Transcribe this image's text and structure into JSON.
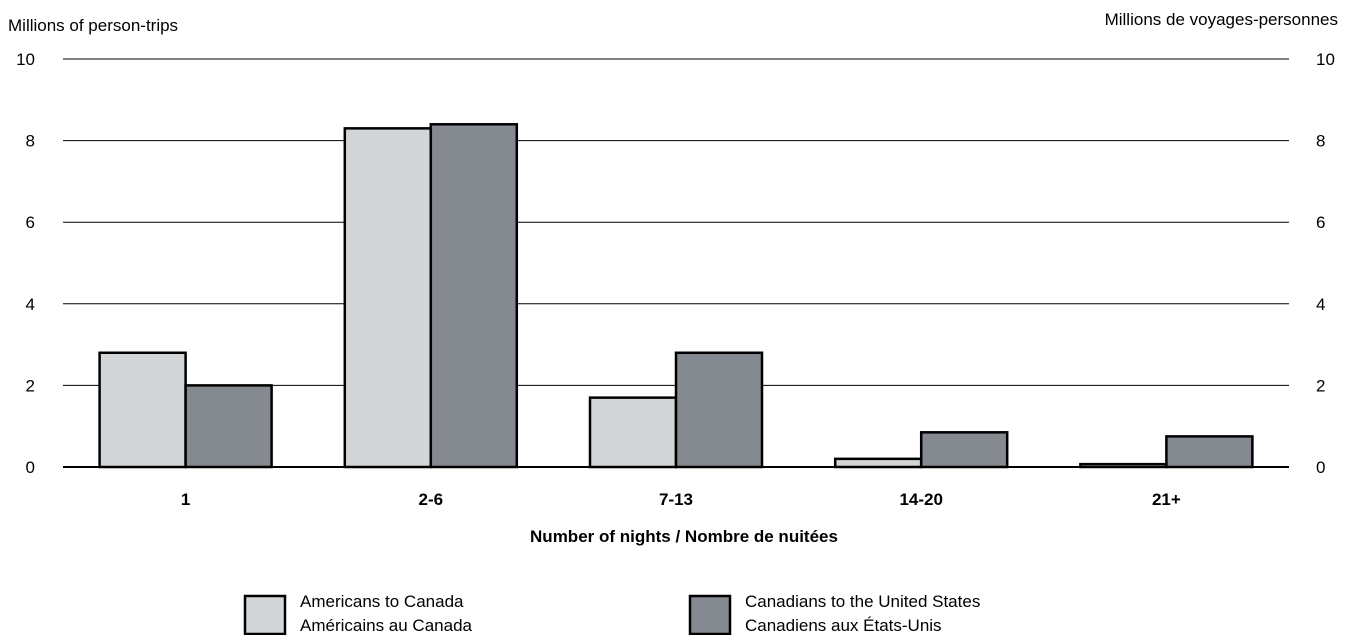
{
  "chart_data": {
    "type": "bar",
    "left_axis_label": "Millions of person-trips",
    "right_axis_label": "Millions de voyages-personnes",
    "xlabel": "Number of nights / Nombre de nuitées",
    "categories": [
      "1",
      "2-6",
      "7-13",
      "14-20",
      "21+"
    ],
    "ylim": [
      0,
      10
    ],
    "yticks": [
      0,
      2,
      4,
      6,
      8,
      10
    ],
    "grid": true,
    "legend_position": "bottom",
    "series": [
      {
        "name": "Americans to Canada",
        "name_fr": "Américains au Canada",
        "color": "#d3d6d8",
        "values": [
          2.8,
          8.3,
          1.7,
          0.2,
          0.07
        ]
      },
      {
        "name": "Canadians to the United States",
        "name_fr": "Canadiens aux États-Unis",
        "color": "#858990",
        "values": [
          2.0,
          8.4,
          2.8,
          0.85,
          0.75
        ]
      }
    ]
  }
}
